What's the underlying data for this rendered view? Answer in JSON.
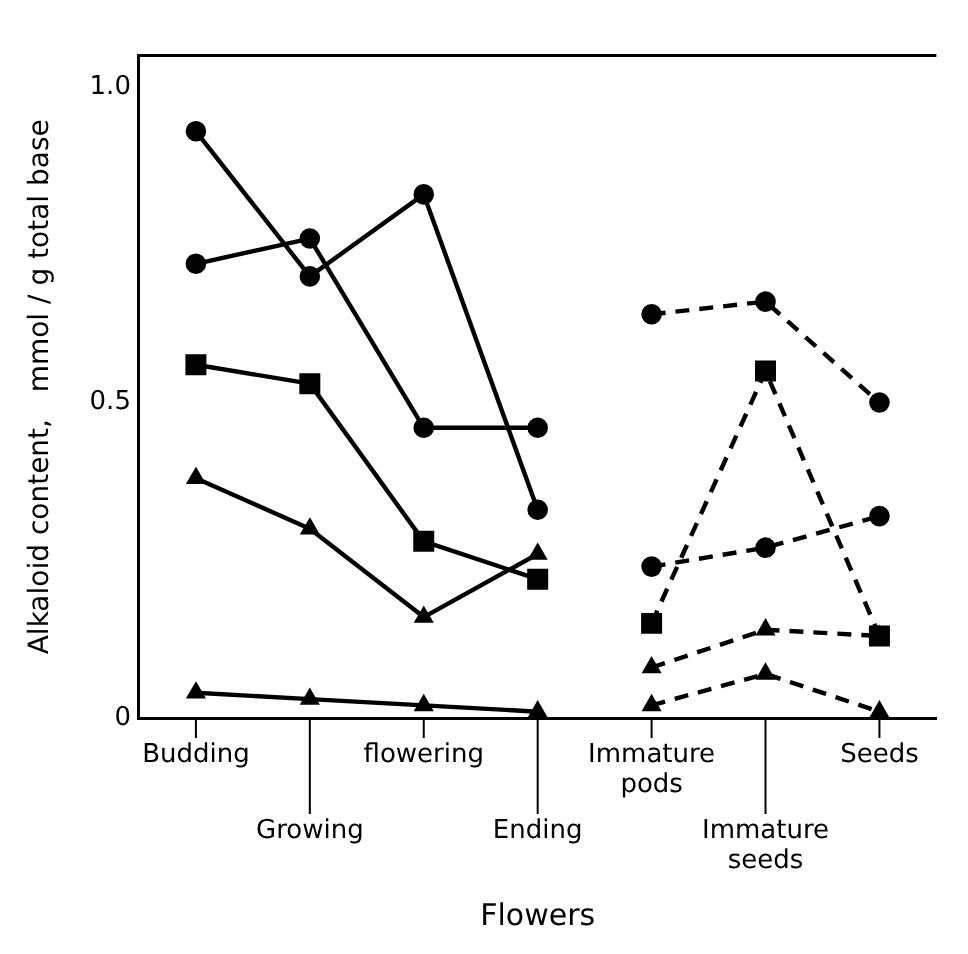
{
  "chart_data": {
    "type": "line",
    "xlabel": "Flowers",
    "ylabel": "Alkaloid content,   mmol / g total base",
    "categories": [
      "Budding",
      "Growing",
      "flowering",
      "Ending",
      "Immature pods",
      "Immature seeds",
      "Seeds"
    ],
    "ylim": [
      0,
      1.05
    ],
    "yticks": [
      0,
      0.5,
      {
        "value": 1,
        "label": "1.0"
      }
    ],
    "grid": false,
    "legend": false,
    "series": [
      {
        "color": "#000000",
        "marker": "circle",
        "line_style": "solid",
        "values": [
          0.93,
          0.7,
          0.83,
          0.33,
          null,
          null,
          null
        ]
      },
      {
        "color": "#000000",
        "marker": "circle",
        "line_style": "solid",
        "values": [
          0.72,
          0.76,
          0.46,
          0.46,
          null,
          null,
          null
        ]
      },
      {
        "color": "#000000",
        "marker": "square",
        "line_style": "solid",
        "values": [
          0.56,
          0.53,
          0.28,
          0.22,
          null,
          null,
          null
        ]
      },
      {
        "color": "#000000",
        "marker": "triangle",
        "line_style": "solid",
        "values": [
          0.38,
          0.3,
          0.16,
          0.26,
          null,
          null,
          null
        ]
      },
      {
        "color": "#000000",
        "marker": "triangle",
        "line_style": "solid",
        "values": [
          0.04,
          0.03,
          0.02,
          0.01,
          null,
          null,
          null
        ]
      },
      {
        "color": "#000000",
        "marker": "circle",
        "line_style": "dashed",
        "values": [
          null,
          null,
          null,
          null,
          0.24,
          0.27,
          0.32
        ]
      },
      {
        "color": "#000000",
        "marker": "circle",
        "line_style": "dashed",
        "values": [
          null,
          null,
          null,
          null,
          0.64,
          0.66,
          0.5
        ]
      },
      {
        "color": "#000000",
        "marker": "square",
        "line_style": "dashed",
        "values": [
          null,
          null,
          null,
          null,
          0.15,
          0.55,
          0.13
        ]
      },
      {
        "color": "#000000",
        "marker": "triangle",
        "line_style": "dashed",
        "values": [
          null,
          null,
          null,
          null,
          0.08,
          0.14,
          0.13
        ]
      },
      {
        "color": "#000000",
        "marker": "triangle",
        "line_style": "dashed",
        "values": [
          null,
          null,
          null,
          null,
          0.02,
          0.07,
          0.01
        ]
      }
    ]
  }
}
